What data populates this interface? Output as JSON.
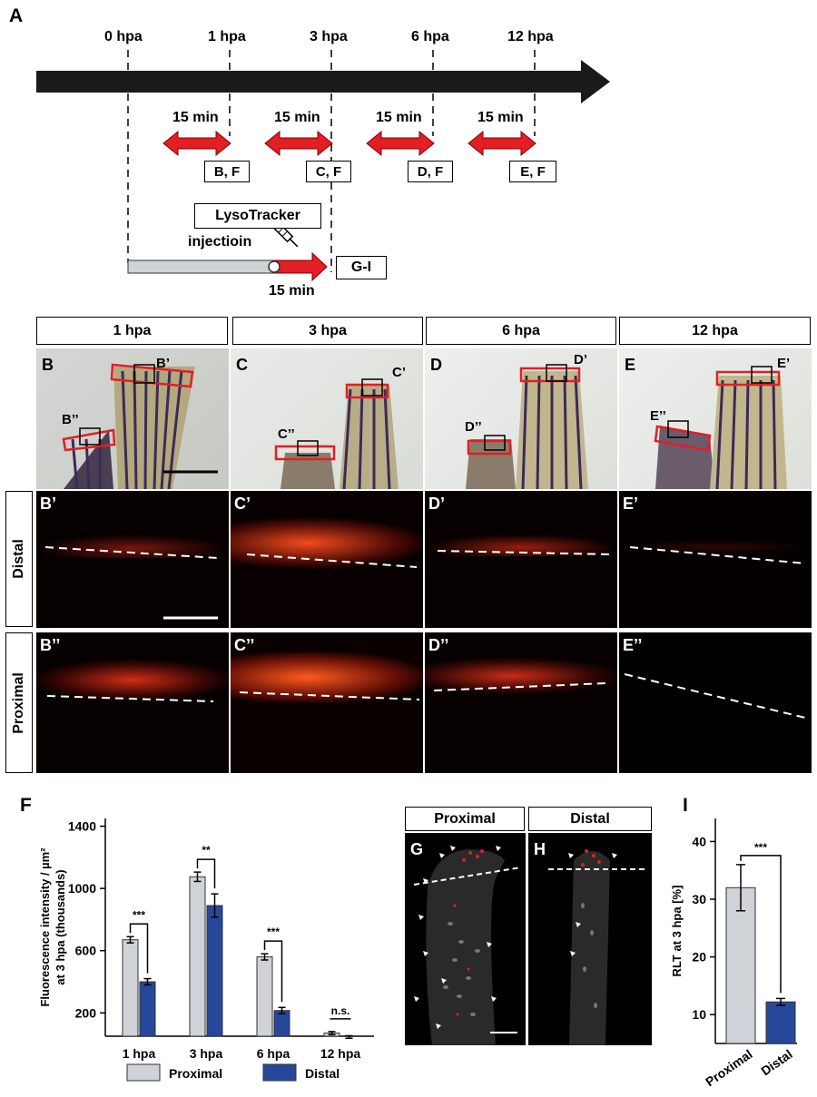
{
  "panels": {
    "A": "A",
    "B": "B",
    "C": "C",
    "D": "D",
    "E": "E",
    "F": "F",
    "G": "G",
    "H": "H",
    "I": "I"
  },
  "timeline": {
    "ticks": [
      "0 hpa",
      "1 hpa",
      "3 hpa",
      "6 hpa",
      "12 hpa"
    ],
    "interval_label": "15 min",
    "boxes": [
      "B, F",
      "C, F",
      "D, F",
      "E, F"
    ],
    "lysotracker": "LysoTracker",
    "injection": "injectioin",
    "injection_duration": "15 min",
    "gi": "G-I"
  },
  "columns": [
    "1 hpa",
    "3 hpa",
    "6 hpa",
    "12 hpa"
  ],
  "rows": {
    "distal": "Distal",
    "proximal": "Proximal"
  },
  "sublabels": {
    "b1": "B’",
    "b2": "B’’",
    "c1": "C’",
    "c2": "C’’",
    "d1": "D’",
    "d2": "D’’",
    "e1": "E’",
    "e2": "E’’"
  },
  "section_labels": {
    "proximal": "Proximal",
    "distal": "Distal"
  },
  "colors": {
    "proximal": "#cfd2d6",
    "distal": "#27479a",
    "arrow": "#e31e24"
  },
  "chart_data": [
    {
      "type": "bar",
      "panel": "F",
      "categories": [
        "1 hpa",
        "3 hpa",
        "6 hpa",
        "12 hpa"
      ],
      "series": [
        {
          "name": "Proximal",
          "values": [
            670,
            1075,
            560,
            70
          ],
          "errors": [
            20,
            30,
            20,
            10
          ]
        },
        {
          "name": "Distal",
          "values": [
            400,
            890,
            215,
            45
          ],
          "errors": [
            20,
            75,
            20,
            8
          ]
        }
      ],
      "ylabel": "Fluorescence intensity / µm² at 3 hpa (thousands)",
      "yticks": [
        200,
        600,
        1000,
        1400
      ],
      "ylim": [
        50,
        1450
      ],
      "significance": [
        "***",
        "**",
        "***",
        "n.s."
      ]
    },
    {
      "type": "bar",
      "panel": "I",
      "categories": [
        "Proximal",
        "Distal"
      ],
      "values": [
        32,
        12.2
      ],
      "errors": [
        4,
        0.6
      ],
      "ylabel": "RLT at 3 hpa [%]",
      "yticks": [
        10,
        20,
        30,
        40
      ],
      "ylim": [
        5,
        44
      ],
      "significance": "***"
    }
  ]
}
